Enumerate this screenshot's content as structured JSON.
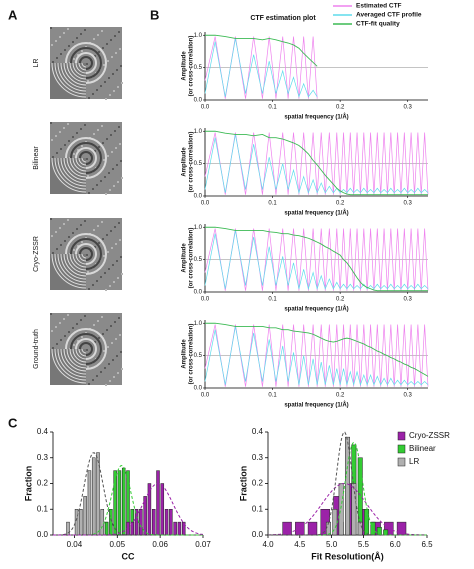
{
  "panels": [
    "A",
    "B",
    "C"
  ],
  "images": [
    {
      "label": "LR"
    },
    {
      "label": "Bilinear"
    },
    {
      "label": "Cryo-ZSSR"
    },
    {
      "label": "Ground-truth"
    }
  ],
  "chart_data": [
    {
      "type": "line",
      "title": "CTF estimation plot",
      "ylabel": [
        "Amplitude",
        "(or cross-correlation)"
      ],
      "xlabel": "spatial frequency (1/Å)",
      "xlim": [
        0,
        0.33
      ],
      "xticks": [
        {
          "value": 0,
          "label": "0.0"
        },
        0.1,
        0.2,
        0.3
      ],
      "ylim": [
        0,
        1.05
      ],
      "yticks": [
        {
          "value": 0,
          "label": "0.0"
        },
        0.5,
        {
          "value": 1,
          "label": "1.0"
        }
      ],
      "hline": 0.5,
      "legend": "top-right",
      "x": [
        0,
        0.015,
        0.03,
        0.045,
        0.06,
        0.072,
        0.085,
        0.095,
        0.105,
        0.115,
        0.123,
        0.131,
        0.139,
        0.146,
        0.153,
        0.16,
        0.166
      ],
      "series": [
        {
          "name": "Estimated CTF",
          "color": "#ee82ee",
          "values": [
            0.3,
            0.98,
            0.02,
            0.98,
            0.02,
            0.98,
            0.02,
            0.98,
            0.02,
            0.98,
            0.02,
            0.98,
            0.02,
            0.98,
            0.02,
            0.98,
            0.02
          ]
        },
        {
          "name": "Averaged CTF profile",
          "color": "#5fdcec",
          "values": [
            0.1,
            0.9,
            0.05,
            0.95,
            0.1,
            0.7,
            0.1,
            0.6,
            0.1,
            0.45,
            0.1,
            0.35,
            0.05,
            0.25,
            0.05,
            0.15,
            0.05
          ]
        },
        {
          "name": "CTF-fit quality",
          "color": "#3cba54",
          "values": [
            1,
            1,
            0.98,
            0.95,
            0.95,
            0.95,
            0.93,
            0.95,
            0.93,
            0.9,
            0.88,
            0.85,
            0.8,
            0.72,
            0.65,
            0.58,
            0.52
          ]
        }
      ]
    },
    {
      "type": "line",
      "ylabel": [
        "Amplitude",
        "(or cross-correlation)"
      ],
      "xlabel": "spatial frequency (1/Å)",
      "xlim": [
        0,
        0.33
      ],
      "xticks": [
        {
          "value": 0,
          "label": "0.0"
        },
        0.1,
        0.2,
        0.3
      ],
      "ylim": [
        0,
        1.05
      ],
      "yticks": [
        {
          "value": 0,
          "label": "0.0"
        },
        0.5,
        {
          "value": 1,
          "label": "1.0"
        }
      ],
      "hline": 0.5,
      "x": [
        0,
        0.015,
        0.03,
        0.045,
        0.06,
        0.072,
        0.085,
        0.095,
        0.105,
        0.115,
        0.123,
        0.131,
        0.139,
        0.146,
        0.153,
        0.16,
        0.166,
        0.172,
        0.178,
        0.184,
        0.19,
        0.195,
        0.2,
        0.205,
        0.21,
        0.215,
        0.22,
        0.225,
        0.23,
        0.235,
        0.24,
        0.245,
        0.25,
        0.255,
        0.26,
        0.265,
        0.27,
        0.275,
        0.28,
        0.285,
        0.29,
        0.295,
        0.3,
        0.305,
        0.31,
        0.315,
        0.32,
        0.325,
        0.33
      ],
      "series": [
        {
          "color": "#ee82ee",
          "values": [
            0.3,
            0.98,
            0.02,
            0.98,
            0.02,
            0.98,
            0.02,
            0.98,
            0.02,
            0.98,
            0.02,
            0.98,
            0.02,
            0.98,
            0.02,
            0.98,
            0.02,
            0.98,
            0.02,
            0.98,
            0.02,
            0.98,
            0.02,
            0.98,
            0.02,
            0.98,
            0.02,
            0.98,
            0.02,
            0.98,
            0.02,
            0.98,
            0.02,
            0.98,
            0.02,
            0.98,
            0.02,
            0.98,
            0.02,
            0.98,
            0.02,
            0.98,
            0.02,
            0.98,
            0.02,
            0.98,
            0.02,
            0.98,
            0.02
          ]
        },
        {
          "color": "#5fdcec",
          "values": [
            0.1,
            0.9,
            0.05,
            0.95,
            0.1,
            0.8,
            0.1,
            0.6,
            0.1,
            0.5,
            0.1,
            0.4,
            0.05,
            0.3,
            0.05,
            0.25,
            0.05,
            0.2,
            0.05,
            0.15,
            0.05,
            0.12,
            0.05,
            0.1,
            0.05,
            0.12,
            0.05,
            0.1,
            0.05,
            0.12,
            0.05,
            0.1,
            0.05,
            0.12,
            0.05,
            0.1,
            0.05,
            0.12,
            0.05,
            0.1,
            0.05,
            0.12,
            0.05,
            0.1,
            0.05,
            0.12,
            0.05,
            0.1,
            0.05
          ]
        },
        {
          "color": "#3cba54",
          "values": [
            1,
            1,
            0.97,
            0.95,
            0.95,
            0.93,
            0.95,
            0.9,
            0.9,
            0.88,
            0.85,
            0.82,
            0.78,
            0.72,
            0.65,
            0.55,
            0.48,
            0.4,
            0.32,
            0.25,
            0.18,
            0.12,
            0.08,
            0.05,
            0.03,
            0.02,
            0.02,
            0.02,
            0.02,
            0.02,
            0.02,
            0.02,
            0.02,
            0.02,
            0.02,
            0.02,
            0.02,
            0.02,
            0.02,
            0.02,
            0.02,
            0.02,
            0.02,
            0.02,
            0.02,
            0.02,
            0.02,
            0.02,
            0.02
          ]
        }
      ]
    },
    {
      "type": "line",
      "ylabel": [
        "Amplitude",
        "(or cross-correlation)"
      ],
      "xlabel": "spatial frequency (1/Å)",
      "xlim": [
        0,
        0.33
      ],
      "xticks": [
        {
          "value": 0,
          "label": "0.0"
        },
        0.1,
        0.2,
        0.3
      ],
      "ylim": [
        0,
        1.05
      ],
      "yticks": [
        {
          "value": 0,
          "label": "0.0"
        },
        0.5,
        {
          "value": 1,
          "label": "1.0"
        }
      ],
      "hline": 0.5,
      "x": [
        0,
        0.015,
        0.03,
        0.045,
        0.06,
        0.072,
        0.085,
        0.095,
        0.105,
        0.115,
        0.123,
        0.131,
        0.139,
        0.146,
        0.153,
        0.16,
        0.166,
        0.172,
        0.178,
        0.184,
        0.19,
        0.195,
        0.2,
        0.205,
        0.21,
        0.215,
        0.22,
        0.225,
        0.23,
        0.235,
        0.24,
        0.245,
        0.25,
        0.255,
        0.26,
        0.265,
        0.27,
        0.275,
        0.28,
        0.285,
        0.29,
        0.295,
        0.3,
        0.305,
        0.31,
        0.315,
        0.32,
        0.325,
        0.33
      ],
      "series": [
        {
          "color": "#ee82ee",
          "values": [
            0.3,
            0.98,
            0.02,
            0.98,
            0.02,
            0.98,
            0.02,
            0.98,
            0.02,
            0.98,
            0.02,
            0.98,
            0.02,
            0.98,
            0.02,
            0.98,
            0.02,
            0.98,
            0.02,
            0.98,
            0.02,
            0.98,
            0.02,
            0.98,
            0.02,
            0.98,
            0.02,
            0.98,
            0.02,
            0.98,
            0.02,
            0.98,
            0.02,
            0.98,
            0.02,
            0.98,
            0.02,
            0.98,
            0.02,
            0.98,
            0.02,
            0.98,
            0.02,
            0.98,
            0.02,
            0.98,
            0.02,
            0.98,
            0.02
          ]
        },
        {
          "color": "#5fdcec",
          "values": [
            0.1,
            0.9,
            0.05,
            0.95,
            0.1,
            0.85,
            0.1,
            0.7,
            0.1,
            0.55,
            0.1,
            0.45,
            0.05,
            0.35,
            0.05,
            0.3,
            0.05,
            0.25,
            0.05,
            0.2,
            0.05,
            0.15,
            0.05,
            0.12,
            0.05,
            0.12,
            0.05,
            0.1,
            0.05,
            0.12,
            0.05,
            0.1,
            0.05,
            0.12,
            0.05,
            0.1,
            0.05,
            0.12,
            0.05,
            0.1,
            0.05,
            0.12,
            0.05,
            0.1,
            0.05,
            0.12,
            0.05,
            0.1,
            0.05
          ]
        },
        {
          "color": "#3cba54",
          "values": [
            1,
            1,
            0.98,
            0.95,
            0.95,
            0.95,
            0.95,
            0.93,
            0.92,
            0.9,
            0.9,
            0.88,
            0.87,
            0.85,
            0.83,
            0.8,
            0.77,
            0.74,
            0.7,
            0.67,
            0.63,
            0.6,
            0.57,
            0.5,
            0.45,
            0.38,
            0.3,
            0.22,
            0.15,
            0.1,
            0.07,
            0.05,
            0.03,
            0.02,
            0.02,
            0.02,
            0.02,
            0.02,
            0.02,
            0.02,
            0.02,
            0.02,
            0.02,
            0.02,
            0.02,
            0.02,
            0.02,
            0.02,
            0.02
          ]
        }
      ]
    },
    {
      "type": "line",
      "ylabel": [
        "Amplitude",
        "(or cross-correlation)"
      ],
      "xlabel": "spatial frequency (1/Å)",
      "xlim": [
        0,
        0.33
      ],
      "xticks": [
        {
          "value": 0,
          "label": "0.0"
        },
        0.1,
        0.2,
        0.3
      ],
      "ylim": [
        0,
        1.05
      ],
      "yticks": [
        {
          "value": 0,
          "label": "0.0"
        },
        0.5,
        {
          "value": 1,
          "label": "1.0"
        }
      ],
      "hline": 0.5,
      "x": [
        0,
        0.015,
        0.03,
        0.045,
        0.06,
        0.072,
        0.085,
        0.095,
        0.105,
        0.115,
        0.123,
        0.131,
        0.139,
        0.146,
        0.153,
        0.16,
        0.166,
        0.172,
        0.178,
        0.184,
        0.19,
        0.195,
        0.2,
        0.205,
        0.21,
        0.215,
        0.22,
        0.225,
        0.23,
        0.235,
        0.24,
        0.245,
        0.25,
        0.255,
        0.26,
        0.265,
        0.27,
        0.275,
        0.28,
        0.285,
        0.29,
        0.295,
        0.3,
        0.305,
        0.31,
        0.315,
        0.32,
        0.325,
        0.33
      ],
      "series": [
        {
          "color": "#ee82ee",
          "values": [
            0.3,
            0.98,
            0.02,
            0.98,
            0.02,
            0.98,
            0.02,
            0.98,
            0.02,
            0.98,
            0.02,
            0.98,
            0.02,
            0.98,
            0.02,
            0.98,
            0.02,
            0.98,
            0.02,
            0.98,
            0.02,
            0.98,
            0.02,
            0.98,
            0.02,
            0.98,
            0.02,
            0.98,
            0.02,
            0.98,
            0.02,
            0.98,
            0.02,
            0.98,
            0.02,
            0.98,
            0.02,
            0.98,
            0.02,
            0.98,
            0.02,
            0.98,
            0.02,
            0.98,
            0.02,
            0.98,
            0.02,
            0.98,
            0.02
          ]
        },
        {
          "color": "#5fdcec",
          "values": [
            0.1,
            0.9,
            0.05,
            0.95,
            0.1,
            0.85,
            0.1,
            0.75,
            0.1,
            0.65,
            0.1,
            0.55,
            0.05,
            0.5,
            0.05,
            0.45,
            0.05,
            0.4,
            0.05,
            0.35,
            0.05,
            0.3,
            0.05,
            0.3,
            0.05,
            0.25,
            0.05,
            0.25,
            0.05,
            0.2,
            0.05,
            0.2,
            0.05,
            0.18,
            0.05,
            0.15,
            0.05,
            0.15,
            0.05,
            0.12,
            0.05,
            0.12,
            0.05,
            0.1,
            0.05,
            0.1,
            0.05,
            0.1,
            0.05
          ]
        },
        {
          "color": "#3cba54",
          "values": [
            1,
            1,
            0.98,
            0.95,
            0.95,
            0.95,
            0.95,
            0.93,
            0.93,
            0.9,
            0.9,
            0.88,
            0.87,
            0.86,
            0.85,
            0.83,
            0.8,
            0.77,
            0.74,
            0.72,
            0.71,
            0.72,
            0.74,
            0.76,
            0.77,
            0.76,
            0.74,
            0.72,
            0.7,
            0.68,
            0.65,
            0.63,
            0.6,
            0.57,
            0.55,
            0.52,
            0.5,
            0.47,
            0.45,
            0.42,
            0.4,
            0.37,
            0.35,
            0.32,
            0.3,
            0.27,
            0.24,
            0.21,
            0.18
          ]
        }
      ]
    },
    {
      "type": "histogram",
      "xlabel": "CC",
      "ylabel": "Fraction",
      "xlim": [
        0.035,
        0.07
      ],
      "xticks": [
        0.04,
        0.05,
        0.06,
        0.07
      ],
      "ylim": [
        0,
        0.4
      ],
      "yticks": [
        {
          "value": 0,
          "label": "0.0"
        },
        0.1,
        0.2,
        0.3,
        0.4
      ],
      "series": [
        {
          "color": "#b0b0b0",
          "bins": [
            0.038,
            0.039,
            0.04,
            0.041,
            0.042,
            0.043,
            0.044,
            0.045,
            0.046,
            0.047,
            0.048
          ],
          "values": [
            0.05,
            0,
            0.1,
            0.1,
            0.15,
            0.25,
            0.3,
            0.32,
            0.1,
            0.05
          ],
          "fit": {
            "mean": 0.0445,
            "sd": 0.0022,
            "peak": 0.32
          }
        },
        {
          "color": "#33cc33",
          "bins": [
            0.047,
            0.048,
            0.049,
            0.05,
            0.051,
            0.052,
            0.053,
            0.054,
            0.055,
            0.056
          ],
          "values": [
            0.05,
            0.1,
            0.25,
            0.25,
            0.26,
            0.25,
            0.1,
            0.05,
            0.03
          ],
          "fit": {
            "mean": 0.051,
            "sd": 0.0022,
            "peak": 0.27
          }
        },
        {
          "color": "#9b22a8",
          "bins": [
            0.052,
            0.053,
            0.054,
            0.055,
            0.056,
            0.057,
            0.058,
            0.059,
            0.06,
            0.061,
            0.062,
            0.063,
            0.064,
            0.065,
            0.066
          ],
          "values": [
            0.05,
            0.05,
            0.1,
            0.1,
            0.15,
            0.2,
            0.1,
            0.25,
            0.2,
            0.1,
            0.1,
            0.05,
            0.05,
            0.05
          ],
          "fit": {
            "mean": 0.0595,
            "sd": 0.0035,
            "peak": 0.2
          }
        }
      ]
    },
    {
      "type": "histogram",
      "xlabel": "Fit Resolution(Å)",
      "ylabel": "Fraction",
      "legend": "top-right",
      "xlim": [
        4,
        6.5
      ],
      "xticks": [
        {
          "value": 4,
          "label": "4.0"
        },
        4.5,
        {
          "value": 5,
          "label": "5.0"
        },
        5.5,
        {
          "value": 6,
          "label": "6.0"
        },
        6.5
      ],
      "ylim": [
        0,
        0.4
      ],
      "yticks": [
        {
          "value": 0,
          "label": "0.0"
        },
        0.1,
        0.2,
        0.3,
        0.4
      ],
      "series": [
        {
          "name": "Cryo-ZSSR",
          "color": "#9b22a8",
          "bins": [
            4.2,
            4.4,
            4.6,
            4.8,
            5,
            5.2,
            5.4,
            5.6,
            5.8,
            6,
            6.2
          ],
          "values": [
            0.05,
            0.05,
            0.05,
            0.1,
            0.15,
            0.2,
            0.1,
            0.05,
            0.05,
            0.05
          ],
          "fit": {
            "mean": 5.2,
            "sd": 0.35,
            "peak": 0.2
          }
        },
        {
          "name": "Bilinear",
          "color": "#33cc33",
          "bins": [
            5.1,
            5.2,
            5.3,
            5.4,
            5.5,
            5.6,
            5.7,
            5.8,
            5.9
          ],
          "values": [
            0.05,
            0.15,
            0.35,
            0.3,
            0.1,
            0.05,
            0.03,
            0.02
          ],
          "fit": {
            "mean": 5.35,
            "sd": 0.13,
            "peak": 0.36
          }
        },
        {
          "name": "LR",
          "color": "#b0b0b0",
          "bins": [
            4.9,
            5,
            5.1,
            5.2,
            5.3,
            5.4,
            5.5
          ],
          "values": [
            0.05,
            0.1,
            0.2,
            0.38,
            0.2,
            0.05
          ],
          "fit": {
            "mean": 5.2,
            "sd": 0.12,
            "peak": 0.4
          }
        }
      ]
    }
  ]
}
